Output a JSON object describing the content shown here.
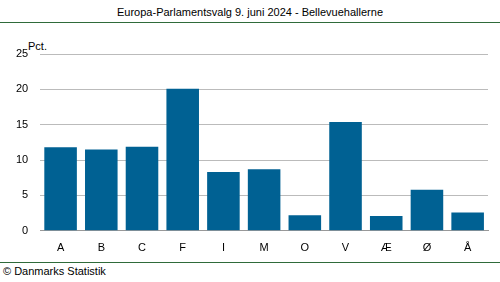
{
  "chart_data": {
    "type": "bar",
    "title": "Europa-Parlamentsvalg 9. juni 2024 - Bellevuehallerne",
    "ylabel": "Pct.",
    "source": "© Danmarks Statistik",
    "categories": [
      "A",
      "B",
      "C",
      "F",
      "I",
      "M",
      "O",
      "V",
      "Æ",
      "Ø",
      "Å"
    ],
    "values": [
      11.8,
      11.5,
      11.9,
      20.1,
      8.3,
      8.7,
      2.2,
      15.4,
      2.1,
      5.8,
      2.6
    ],
    "color": "#006193",
    "ylim": [
      0,
      25
    ],
    "yticks": [
      0,
      5,
      10,
      15,
      20,
      25
    ],
    "grid": true
  }
}
